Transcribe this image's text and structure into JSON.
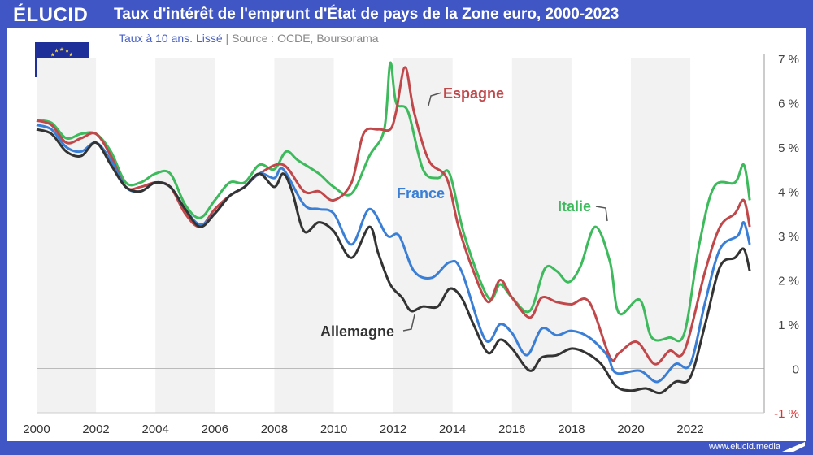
{
  "header": {
    "logo": "ÉLUCID",
    "title": "Taux d'intérêt de l'emprunt d'État de pays de la Zone euro, 2000-2023",
    "subtitle": "Taux à 10 ans. Lissé",
    "separator": "|",
    "source": "Source : OCDE, Boursorama"
  },
  "footer": {
    "site": "www.elucid.media"
  },
  "colors": {
    "frame": "#3f56c4",
    "Allemagne": "#333333",
    "France": "#3a7fd5",
    "Espagne": "#c0474a",
    "Italie": "#3dba5c"
  },
  "chart_data": {
    "type": "line",
    "title": "Taux d'intérêt de l'emprunt d'État de pays de la Zone euro, 2000-2023",
    "xlabel": "",
    "ylabel": "",
    "xlim": [
      2000,
      2024
    ],
    "ylim": [
      -1,
      7
    ],
    "xticks": [
      "2000",
      "2002",
      "2004",
      "2006",
      "2008",
      "2010",
      "2012",
      "2014",
      "2016",
      "2018",
      "2020",
      "2022"
    ],
    "yticks": [
      "7 %",
      "6 %",
      "5 %",
      "4 %",
      "3 %",
      "2 %",
      "1 %",
      "0",
      "-1 %"
    ],
    "series": [
      {
        "name": "Allemagne",
        "points": [
          [
            2000,
            5.4
          ],
          [
            2000.5,
            5.3
          ],
          [
            2001,
            4.9
          ],
          [
            2001.5,
            4.8
          ],
          [
            2002,
            5.1
          ],
          [
            2002.5,
            4.6
          ],
          [
            2003,
            4.1
          ],
          [
            2003.5,
            4.0
          ],
          [
            2004,
            4.2
          ],
          [
            2004.5,
            4.1
          ],
          [
            2005,
            3.6
          ],
          [
            2005.5,
            3.2
          ],
          [
            2006,
            3.5
          ],
          [
            2006.5,
            3.9
          ],
          [
            2007,
            4.1
          ],
          [
            2007.5,
            4.4
          ],
          [
            2008,
            4.1
          ],
          [
            2008.3,
            4.4
          ],
          [
            2008.6,
            4.0
          ],
          [
            2009,
            3.1
          ],
          [
            2009.5,
            3.3
          ],
          [
            2010,
            3.1
          ],
          [
            2010.6,
            2.5
          ],
          [
            2011.2,
            3.2
          ],
          [
            2011.5,
            2.6
          ],
          [
            2011.9,
            1.9
          ],
          [
            2012.3,
            1.6
          ],
          [
            2012.6,
            1.3
          ],
          [
            2013,
            1.4
          ],
          [
            2013.5,
            1.4
          ],
          [
            2013.9,
            1.8
          ],
          [
            2014.3,
            1.6
          ],
          [
            2014.7,
            1.0
          ],
          [
            2015.2,
            0.35
          ],
          [
            2015.6,
            0.65
          ],
          [
            2016,
            0.45
          ],
          [
            2016.6,
            -0.05
          ],
          [
            2017,
            0.25
          ],
          [
            2017.5,
            0.3
          ],
          [
            2018,
            0.45
          ],
          [
            2018.5,
            0.35
          ],
          [
            2019,
            0.1
          ],
          [
            2019.5,
            -0.4
          ],
          [
            2020,
            -0.5
          ],
          [
            2020.5,
            -0.45
          ],
          [
            2021,
            -0.55
          ],
          [
            2021.5,
            -0.3
          ],
          [
            2022,
            -0.2
          ],
          [
            2022.5,
            1.0
          ],
          [
            2023,
            2.3
          ],
          [
            2023.5,
            2.5
          ],
          [
            2023.8,
            2.7
          ],
          [
            2024,
            2.2
          ]
        ]
      },
      {
        "name": "France",
        "points": [
          [
            2000,
            5.5
          ],
          [
            2000.5,
            5.4
          ],
          [
            2001,
            5.0
          ],
          [
            2001.5,
            4.9
          ],
          [
            2002,
            5.1
          ],
          [
            2002.5,
            4.7
          ],
          [
            2003,
            4.1
          ],
          [
            2003.5,
            4.0
          ],
          [
            2004,
            4.2
          ],
          [
            2004.5,
            4.1
          ],
          [
            2005,
            3.6
          ],
          [
            2005.5,
            3.25
          ],
          [
            2006,
            3.5
          ],
          [
            2006.5,
            3.9
          ],
          [
            2007,
            4.1
          ],
          [
            2007.5,
            4.4
          ],
          [
            2008,
            4.3
          ],
          [
            2008.3,
            4.5
          ],
          [
            2009,
            3.7
          ],
          [
            2009.5,
            3.6
          ],
          [
            2010,
            3.5
          ],
          [
            2010.6,
            2.8
          ],
          [
            2011.2,
            3.6
          ],
          [
            2011.8,
            3.0
          ],
          [
            2012.2,
            3.0
          ],
          [
            2012.7,
            2.2
          ],
          [
            2013.3,
            2.05
          ],
          [
            2013.9,
            2.4
          ],
          [
            2014.3,
            2.2
          ],
          [
            2015.1,
            0.65
          ],
          [
            2015.6,
            1.0
          ],
          [
            2016,
            0.8
          ],
          [
            2016.5,
            0.3
          ],
          [
            2017,
            0.9
          ],
          [
            2017.5,
            0.75
          ],
          [
            2018,
            0.85
          ],
          [
            2018.6,
            0.7
          ],
          [
            2019.2,
            0.3
          ],
          [
            2019.5,
            -0.1
          ],
          [
            2020.3,
            -0.05
          ],
          [
            2020.9,
            -0.3
          ],
          [
            2021.5,
            0.1
          ],
          [
            2022,
            0.1
          ],
          [
            2022.5,
            1.5
          ],
          [
            2023,
            2.7
          ],
          [
            2023.6,
            3.0
          ],
          [
            2023.8,
            3.3
          ],
          [
            2024,
            2.8
          ]
        ]
      },
      {
        "name": "Espagne",
        "points": [
          [
            2000,
            5.6
          ],
          [
            2000.5,
            5.5
          ],
          [
            2001,
            5.1
          ],
          [
            2001.5,
            5.2
          ],
          [
            2002,
            5.3
          ],
          [
            2002.5,
            4.8
          ],
          [
            2003,
            4.1
          ],
          [
            2003.5,
            4.1
          ],
          [
            2004,
            4.2
          ],
          [
            2004.5,
            4.1
          ],
          [
            2005,
            3.5
          ],
          [
            2005.5,
            3.2
          ],
          [
            2006,
            3.6
          ],
          [
            2006.5,
            3.9
          ],
          [
            2007,
            4.1
          ],
          [
            2007.5,
            4.4
          ],
          [
            2008.3,
            4.6
          ],
          [
            2009,
            4.0
          ],
          [
            2009.5,
            4.0
          ],
          [
            2010,
            3.8
          ],
          [
            2010.6,
            4.2
          ],
          [
            2011,
            5.3
          ],
          [
            2011.5,
            5.4
          ],
          [
            2011.9,
            5.4
          ],
          [
            2012.1,
            5.8
          ],
          [
            2012.4,
            6.8
          ],
          [
            2012.7,
            5.8
          ],
          [
            2013.2,
            4.7
          ],
          [
            2013.8,
            4.3
          ],
          [
            2014.2,
            3.2
          ],
          [
            2014.7,
            2.2
          ],
          [
            2015.2,
            1.5
          ],
          [
            2015.6,
            2.0
          ],
          [
            2016,
            1.6
          ],
          [
            2016.6,
            1.15
          ],
          [
            2017,
            1.6
          ],
          [
            2017.5,
            1.5
          ],
          [
            2018,
            1.45
          ],
          [
            2018.6,
            1.5
          ],
          [
            2019.3,
            0.25
          ],
          [
            2019.6,
            0.35
          ],
          [
            2020.2,
            0.6
          ],
          [
            2020.8,
            0.1
          ],
          [
            2021.3,
            0.4
          ],
          [
            2021.8,
            0.4
          ],
          [
            2022.5,
            2.2
          ],
          [
            2023,
            3.2
          ],
          [
            2023.5,
            3.5
          ],
          [
            2023.8,
            3.8
          ],
          [
            2024,
            3.2
          ]
        ]
      },
      {
        "name": "Italie",
        "points": [
          [
            2000,
            5.6
          ],
          [
            2000.5,
            5.55
          ],
          [
            2001,
            5.2
          ],
          [
            2001.5,
            5.3
          ],
          [
            2002,
            5.3
          ],
          [
            2002.5,
            4.9
          ],
          [
            2003,
            4.2
          ],
          [
            2003.5,
            4.2
          ],
          [
            2004,
            4.4
          ],
          [
            2004.5,
            4.4
          ],
          [
            2005,
            3.7
          ],
          [
            2005.5,
            3.4
          ],
          [
            2006,
            3.8
          ],
          [
            2006.5,
            4.2
          ],
          [
            2007,
            4.2
          ],
          [
            2007.5,
            4.6
          ],
          [
            2008,
            4.5
          ],
          [
            2008.4,
            4.9
          ],
          [
            2008.8,
            4.7
          ],
          [
            2009.5,
            4.4
          ],
          [
            2010,
            4.1
          ],
          [
            2010.6,
            3.95
          ],
          [
            2011.2,
            4.8
          ],
          [
            2011.7,
            5.4
          ],
          [
            2011.9,
            6.9
          ],
          [
            2012.1,
            6.0
          ],
          [
            2012.5,
            5.8
          ],
          [
            2013,
            4.5
          ],
          [
            2013.5,
            4.3
          ],
          [
            2013.9,
            4.4
          ],
          [
            2014.4,
            3.0
          ],
          [
            2015.2,
            1.6
          ],
          [
            2015.6,
            1.9
          ],
          [
            2016,
            1.6
          ],
          [
            2016.6,
            1.3
          ],
          [
            2017.1,
            2.25
          ],
          [
            2017.5,
            2.2
          ],
          [
            2017.9,
            1.95
          ],
          [
            2018.3,
            2.3
          ],
          [
            2018.8,
            3.2
          ],
          [
            2019.3,
            2.4
          ],
          [
            2019.6,
            1.25
          ],
          [
            2020.3,
            1.55
          ],
          [
            2020.7,
            0.7
          ],
          [
            2021.3,
            0.7
          ],
          [
            2021.8,
            0.8
          ],
          [
            2022.3,
            2.8
          ],
          [
            2022.8,
            4.1
          ],
          [
            2023.5,
            4.2
          ],
          [
            2023.8,
            4.6
          ],
          [
            2024,
            3.8
          ]
        ]
      }
    ],
    "annotations": [
      "Espagne",
      "France",
      "Italie",
      "Allemagne"
    ]
  }
}
